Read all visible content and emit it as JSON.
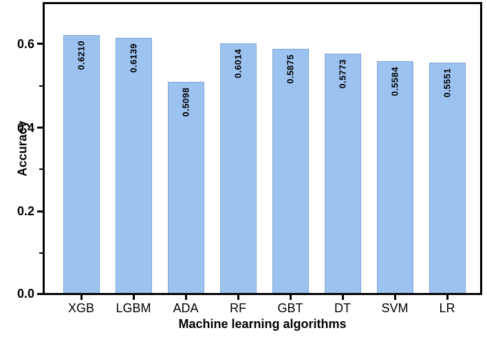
{
  "figure": {
    "background": "#ffffff",
    "frame_color": "#000000",
    "text_color": "#000000"
  },
  "chart_data": {
    "type": "bar",
    "title": "",
    "xlabel": "Machine learning algorithms",
    "ylabel": "Accuracy",
    "categories": [
      "XGB",
      "LGBM",
      "ADA",
      "RF",
      "GBT",
      "DT",
      "SVM",
      "LR"
    ],
    "values": [
      0.621,
      0.6139,
      0.5098,
      0.6014,
      0.5875,
      0.5773,
      0.5584,
      0.5551
    ],
    "value_labels": [
      "0.6210",
      "0.6139",
      "0.5098",
      "0.6014",
      "0.5875",
      "0.5773",
      "0.5584",
      "0.5551"
    ],
    "ylim": [
      0,
      0.7
    ],
    "yticks": [
      {
        "value": 0.0,
        "label": "0.0"
      },
      {
        "value": 0.2,
        "label": "0.2"
      },
      {
        "value": 0.4,
        "label": "0.4"
      },
      {
        "value": 0.6,
        "label": "0.6"
      }
    ],
    "minor_yticks": [
      0.1,
      0.3,
      0.5
    ],
    "grid": false,
    "legend": null,
    "bar_fill": "#9cc2f0",
    "bar_border": "#82a8da",
    "value_label_color": "#000000"
  }
}
